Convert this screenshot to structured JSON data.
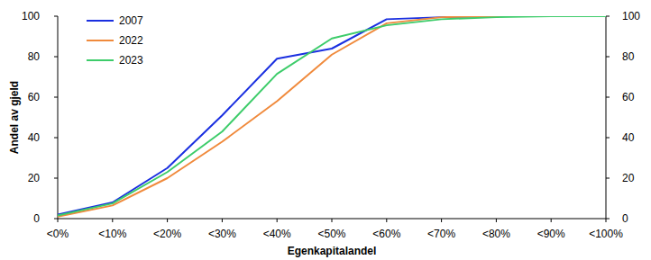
{
  "chart_data": {
    "type": "line",
    "x_label": "Egenkapitalandel",
    "y_label": "Andel av gjeld",
    "categories": [
      "<0%",
      "<10%",
      "<20%",
      "<30%",
      "<40%",
      "<50%",
      "<60%",
      "<70%",
      "<80%",
      "<90%",
      "<100%"
    ],
    "series": [
      {
        "name": "2007",
        "color": "#1a2fe0",
        "values": [
          2,
          8,
          25,
          51,
          79,
          84,
          98.5,
          99.5,
          100,
          100,
          100
        ]
      },
      {
        "name": "2022",
        "color": "#f08a3c",
        "values": [
          1,
          6.5,
          20,
          38,
          58,
          81,
          96.5,
          99.5,
          100,
          100,
          100
        ]
      },
      {
        "name": "2023",
        "color": "#3dcc6a",
        "values": [
          1.5,
          7.5,
          23,
          43,
          71.5,
          89,
          95.5,
          98.5,
          99.5,
          100,
          100
        ]
      }
    ],
    "ylim": [
      0,
      100
    ],
    "yticks": [
      0,
      20,
      40,
      60,
      80,
      100
    ],
    "y2lim": [
      0,
      100
    ],
    "y2ticks": [
      0,
      20,
      40,
      60,
      80,
      100
    ],
    "grid": false,
    "legend": "upper left"
  }
}
